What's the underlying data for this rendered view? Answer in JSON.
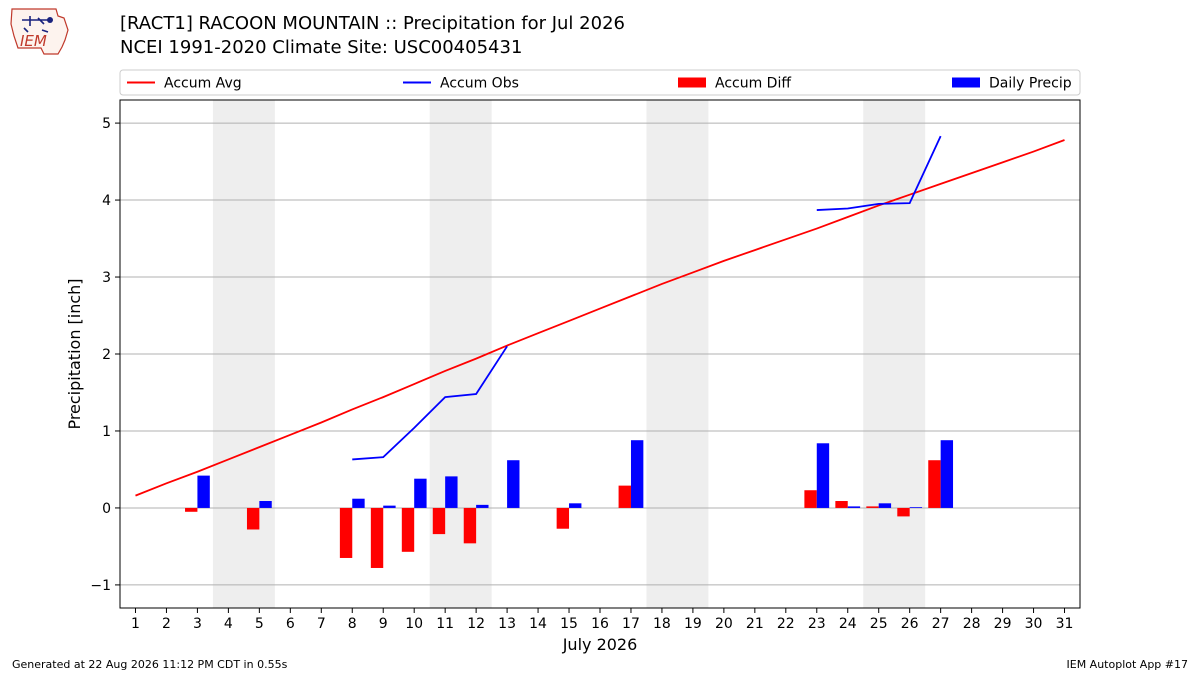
{
  "header": {
    "title_line1": "[RACT1] RACOON MOUNTAIN :: Precipitation for Jul 2026",
    "title_line2": "NCEI 1991-2020 Climate Site: USC00405431",
    "logo_text": "IEM"
  },
  "footer": {
    "generated": "Generated at 22 Aug 2026 11:12 PM CDT in 0.55s",
    "app": "IEM Autoplot App #17"
  },
  "colors": {
    "accum_avg": "#ff0000",
    "accum_obs": "#0000ff",
    "accum_diff": "#ff0000",
    "daily_precip": "#0000ff",
    "weekend_shade": "#eeeeee",
    "grid": "#b0b0b0"
  },
  "chart_data": {
    "type": "bar",
    "xlabel": "July 2026",
    "ylabel": "Precipitation [inch]",
    "ylim": [
      -1.3,
      5.3
    ],
    "xlim": [
      0.5,
      31.5
    ],
    "yticks": [
      -1,
      0,
      1,
      2,
      3,
      4,
      5
    ],
    "ytick_labels": [
      "−1",
      "0",
      "1",
      "2",
      "3",
      "4",
      "5"
    ],
    "days": [
      1,
      2,
      3,
      4,
      5,
      6,
      7,
      8,
      9,
      10,
      11,
      12,
      13,
      14,
      15,
      16,
      17,
      18,
      19,
      20,
      21,
      22,
      23,
      24,
      25,
      26,
      27,
      28,
      29,
      30,
      31
    ],
    "grid": "horizontal",
    "weekend_shading": [
      [
        4,
        5
      ],
      [
        11,
        12
      ],
      [
        18,
        19
      ],
      [
        25,
        26
      ]
    ],
    "legend": {
      "placement": "top",
      "entries": [
        {
          "label": "Accum Avg",
          "kind": "line",
          "color": "#ff0000"
        },
        {
          "label": "Accum Obs",
          "kind": "line",
          "color": "#0000ff"
        },
        {
          "label": "Accum Diff",
          "kind": "bar",
          "color": "#ff0000"
        },
        {
          "label": "Daily Precip",
          "kind": "bar",
          "color": "#0000ff"
        }
      ]
    },
    "series": [
      {
        "name": "Accum Avg",
        "kind": "line",
        "x": [
          1,
          2,
          3,
          4,
          5,
          6,
          7,
          8,
          9,
          10,
          11,
          12,
          13,
          14,
          15,
          16,
          17,
          18,
          19,
          20,
          21,
          22,
          23,
          24,
          25,
          26,
          27,
          28,
          29,
          30,
          31
        ],
        "values": [
          0.16,
          0.32,
          0.47,
          0.63,
          0.79,
          0.95,
          1.11,
          1.28,
          1.44,
          1.61,
          1.78,
          1.94,
          2.11,
          2.27,
          2.43,
          2.59,
          2.75,
          2.91,
          3.06,
          3.21,
          3.35,
          3.49,
          3.63,
          3.78,
          3.93,
          4.07,
          4.21,
          4.35,
          4.49,
          4.63,
          4.78
        ]
      },
      {
        "name": "Accum Obs",
        "kind": "line",
        "segments": [
          {
            "x": [
              8,
              9,
              10,
              11,
              12,
              13
            ],
            "values": [
              0.63,
              0.66,
              1.04,
              1.44,
              1.48,
              2.1
            ]
          },
          {
            "x": [
              23,
              24,
              25,
              26,
              27
            ],
            "values": [
              3.87,
              3.89,
              3.95,
              3.96,
              4.83
            ]
          }
        ]
      },
      {
        "name": "Accum Diff",
        "kind": "bar",
        "x": [
          3,
          5,
          8,
          9,
          10,
          11,
          12,
          15,
          17,
          23,
          24,
          25,
          26,
          27
        ],
        "values": [
          -0.05,
          -0.28,
          -0.65,
          -0.78,
          -0.57,
          -0.34,
          -0.46,
          -0.27,
          0.29,
          0.23,
          0.09,
          0.02,
          -0.11,
          0.62
        ]
      },
      {
        "name": "Daily Precip",
        "kind": "bar",
        "x": [
          3,
          5,
          8,
          9,
          10,
          11,
          12,
          13,
          15,
          17,
          23,
          24,
          25,
          26,
          27
        ],
        "values": [
          0.42,
          0.09,
          0.12,
          0.03,
          0.38,
          0.41,
          0.04,
          0.62,
          0.06,
          0.88,
          0.84,
          0.02,
          0.06,
          0.01,
          0.88
        ]
      }
    ]
  }
}
